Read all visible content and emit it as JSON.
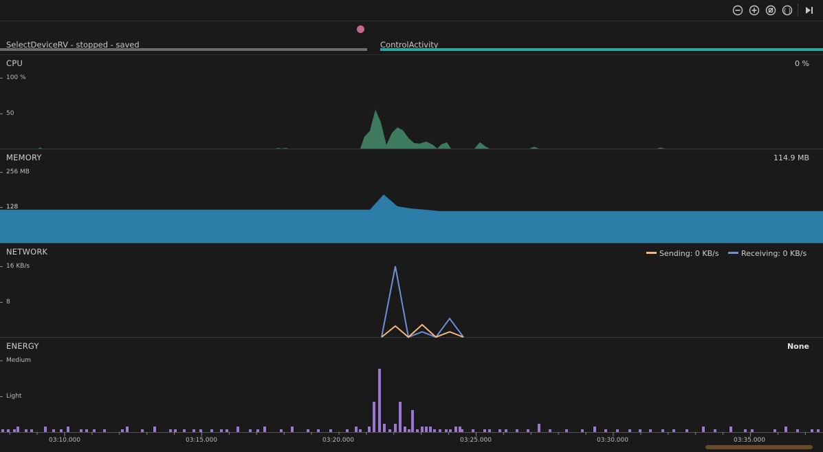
{
  "toolbar": {
    "buttons": [
      {
        "name": "zoom-out-icon",
        "glyph": "⊖"
      },
      {
        "name": "zoom-in-icon",
        "glyph": "⊕"
      },
      {
        "name": "reset-zoom-icon",
        "glyph": "⊘"
      },
      {
        "name": "fit-icon",
        "glyph": "{}"
      },
      {
        "name": "go-live-icon",
        "glyph": "▶|"
      }
    ]
  },
  "sessions": [
    {
      "label": "SelectDeviceRV - stopped - saved",
      "bar_color": "#6d6d6d"
    },
    {
      "label": "ControlActivity",
      "bar_color": "#2ba89c"
    }
  ],
  "tracks": {
    "cpu": {
      "title": "CPU",
      "value": "0 %",
      "y_labels": [
        "100 %",
        "50"
      ],
      "color": "#3d7a5e",
      "series": [
        [
          0,
          0
        ],
        [
          55,
          0
        ],
        [
          58,
          1.5
        ],
        [
          62,
          0
        ],
        [
          400,
          0
        ],
        [
          405,
          1
        ],
        [
          410,
          0
        ],
        [
          415,
          1
        ],
        [
          420,
          0
        ],
        [
          524,
          0
        ],
        [
          530,
          17
        ],
        [
          538,
          25
        ],
        [
          546,
          55
        ],
        [
          554,
          37
        ],
        [
          562,
          5
        ],
        [
          570,
          22
        ],
        [
          578,
          30
        ],
        [
          586,
          26
        ],
        [
          594,
          15
        ],
        [
          602,
          8
        ],
        [
          610,
          7
        ],
        [
          620,
          10
        ],
        [
          630,
          5
        ],
        [
          636,
          0
        ],
        [
          642,
          6
        ],
        [
          650,
          9
        ],
        [
          656,
          0
        ],
        [
          690,
          0
        ],
        [
          698,
          9
        ],
        [
          706,
          3
        ],
        [
          712,
          0
        ],
        [
          770,
          0
        ],
        [
          777,
          2.5
        ],
        [
          784,
          0
        ],
        [
          955,
          0
        ],
        [
          961,
          1.5
        ],
        [
          967,
          0
        ],
        [
          1197,
          0
        ]
      ]
    },
    "memory": {
      "title": "MEMORY",
      "value": "114.9 MB",
      "y_labels": [
        "256 MB",
        "128"
      ],
      "color": "#2b7da8",
      "series": [
        [
          0,
          120
        ],
        [
          538,
          120
        ],
        [
          558,
          175
        ],
        [
          578,
          132
        ],
        [
          598,
          124
        ],
        [
          618,
          120
        ],
        [
          638,
          115
        ],
        [
          1197,
          115
        ]
      ]
    },
    "network": {
      "title": "NETWORK",
      "y_labels": [
        "16 KB/s",
        "8"
      ],
      "legend": [
        {
          "label": "Sending: 0 KB/s",
          "color": "#f5b880"
        },
        {
          "label": "Receiving: 0 KB/s",
          "color": "#6d8fd8"
        }
      ],
      "sending": [
        [
          555,
          0
        ],
        [
          575,
          2.5
        ],
        [
          594,
          0
        ],
        [
          614,
          2.8
        ],
        [
          634,
          0
        ],
        [
          654,
          1.2
        ],
        [
          674,
          0
        ]
      ],
      "receiving": [
        [
          555,
          0
        ],
        [
          575,
          16
        ],
        [
          594,
          0
        ],
        [
          614,
          1.2
        ],
        [
          634,
          0
        ],
        [
          654,
          4.2
        ],
        [
          674,
          0
        ]
      ]
    },
    "energy": {
      "title": "ENERGY",
      "value": "None",
      "y_labels": [
        "Medium",
        "Light"
      ],
      "color": "#9a78d2",
      "bars": [
        [
          2,
          1
        ],
        [
          10,
          1
        ],
        [
          19,
          1
        ],
        [
          24,
          2
        ],
        [
          36,
          1
        ],
        [
          44,
          1
        ],
        [
          64,
          2
        ],
        [
          76,
          1
        ],
        [
          87,
          1
        ],
        [
          97,
          2
        ],
        [
          116,
          1
        ],
        [
          124,
          1
        ],
        [
          135,
          1
        ],
        [
          150,
          1
        ],
        [
          176,
          1
        ],
        [
          183,
          2
        ],
        [
          205,
          1
        ],
        [
          223,
          2
        ],
        [
          246,
          1
        ],
        [
          253,
          1
        ],
        [
          266,
          1
        ],
        [
          280,
          1
        ],
        [
          290,
          1
        ],
        [
          306,
          1
        ],
        [
          320,
          1
        ],
        [
          328,
          1
        ],
        [
          344,
          2
        ],
        [
          362,
          1
        ],
        [
          373,
          1
        ],
        [
          383,
          2
        ],
        [
          407,
          1
        ],
        [
          423,
          2
        ],
        [
          446,
          1
        ],
        [
          461,
          1
        ],
        [
          479,
          1
        ],
        [
          503,
          1
        ],
        [
          516,
          2
        ],
        [
          522,
          1
        ],
        [
          535,
          2
        ],
        [
          542,
          11
        ],
        [
          550,
          23
        ],
        [
          557,
          3
        ],
        [
          565,
          1
        ],
        [
          573,
          3
        ],
        [
          580,
          11
        ],
        [
          587,
          2
        ],
        [
          593,
          1
        ],
        [
          598,
          8
        ],
        [
          605,
          1
        ],
        [
          612,
          2
        ],
        [
          618,
          2
        ],
        [
          624,
          2
        ],
        [
          630,
          1
        ],
        [
          638,
          1
        ],
        [
          647,
          1
        ],
        [
          653,
          1
        ],
        [
          661,
          2
        ],
        [
          667,
          2
        ],
        [
          670,
          1
        ],
        [
          686,
          1
        ],
        [
          703,
          1
        ],
        [
          710,
          1
        ],
        [
          725,
          1
        ],
        [
          734,
          1
        ],
        [
          750,
          1
        ],
        [
          766,
          1
        ],
        [
          782,
          3
        ],
        [
          798,
          1
        ],
        [
          822,
          1
        ],
        [
          845,
          1
        ],
        [
          863,
          2
        ],
        [
          879,
          1
        ],
        [
          896,
          1
        ],
        [
          914,
          1
        ],
        [
          929,
          1
        ],
        [
          944,
          1
        ],
        [
          962,
          1
        ],
        [
          978,
          1
        ],
        [
          997,
          1
        ],
        [
          1021,
          2
        ],
        [
          1038,
          1
        ],
        [
          1061,
          2
        ],
        [
          1082,
          1
        ],
        [
          1092,
          1
        ],
        [
          1125,
          1
        ],
        [
          1141,
          2
        ],
        [
          1158,
          1
        ],
        [
          1179,
          1
        ],
        [
          1188,
          1
        ]
      ]
    }
  },
  "x_axis": {
    "labels": [
      {
        "text": "03:10.000",
        "x": 94
      },
      {
        "text": "03:15.000",
        "x": 293
      },
      {
        "text": "03:20.000",
        "x": 492
      },
      {
        "text": "03:25.000",
        "x": 692
      },
      {
        "text": "03:30.000",
        "x": 891
      },
      {
        "text": "03:35.000",
        "x": 1090
      }
    ]
  }
}
